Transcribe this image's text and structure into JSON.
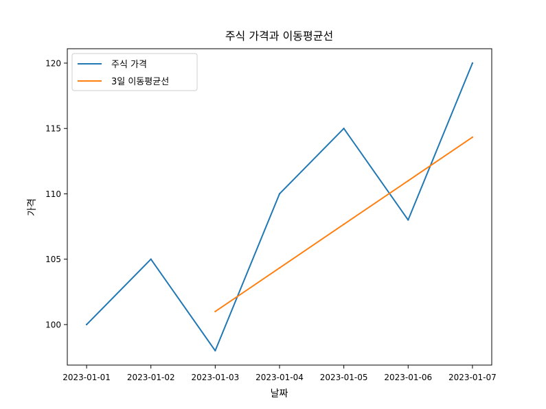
{
  "chart_data": {
    "type": "line",
    "title": "주식 가격과 이동평균선",
    "xlabel": "날짜",
    "ylabel": "가격",
    "categories": [
      "2023-01-01",
      "2023-01-02",
      "2023-01-03",
      "2023-01-04",
      "2023-01-05",
      "2023-01-06",
      "2023-01-07"
    ],
    "yticks": [
      100,
      105,
      110,
      115,
      120
    ],
    "ylim": [
      96.9,
      121.1
    ],
    "grid": false,
    "legend_position": "top-left",
    "series": [
      {
        "name": "주식 가격",
        "color": "#1f77b4",
        "values": [
          100,
          105,
          98,
          110,
          115,
          108,
          120
        ]
      },
      {
        "name": "3일 이동평균선",
        "color": "#ff7f0e",
        "values": [
          null,
          null,
          101.0,
          104.33,
          107.67,
          111.0,
          114.33
        ]
      }
    ]
  }
}
